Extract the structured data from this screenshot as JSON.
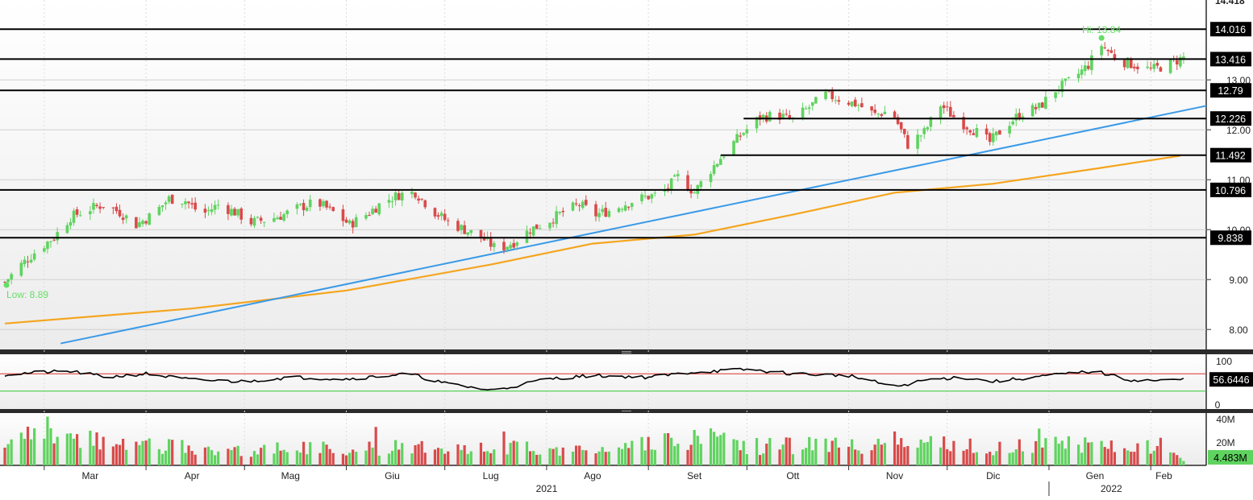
{
  "chart_data": [
    {
      "type": "candlestick",
      "panel": "price",
      "x_range": [
        "2021-02-17",
        "2022-02-12"
      ],
      "ylim": [
        7.6,
        14.6
      ],
      "y_ticks": [
        8.0,
        9.0,
        10.0,
        11.0,
        12.0,
        13.0
      ],
      "y_tick_labels": [
        "8.00",
        "9.00",
        "10.00",
        "11.00",
        "12.00",
        "13.00"
      ],
      "top_partial_label": "14.418",
      "horizontal_levels": [
        {
          "value": 14.016,
          "label": "14.016",
          "from": "2021-02-17"
        },
        {
          "value": 13.416,
          "label": "13.416",
          "from": "2021-02-17"
        },
        {
          "value": 12.79,
          "label": "12.79",
          "from": "2021-02-17"
        },
        {
          "value": 12.226,
          "label": "12.226",
          "from": "2021-09-30"
        },
        {
          "value": 11.492,
          "label": "11.492",
          "from": "2021-09-23"
        },
        {
          "value": 10.796,
          "label": "10.796",
          "from": "2021-02-17"
        },
        {
          "value": 9.838,
          "label": "9.838",
          "from": "2021-02-17"
        }
      ],
      "trendline": {
        "color": "#3a9ae8",
        "start": {
          "date": "2021-03-06",
          "value": 7.72
        },
        "end": {
          "date": "2022-02-12",
          "value": 12.48
        }
      },
      "moving_average": {
        "color": "#f5a51e",
        "points": [
          {
            "date": "2021-02-17",
            "value": 8.12
          },
          {
            "date": "2021-04-15",
            "value": 8.42
          },
          {
            "date": "2021-06-01",
            "value": 8.78
          },
          {
            "date": "2021-07-15",
            "value": 9.3
          },
          {
            "date": "2021-08-15",
            "value": 9.72
          },
          {
            "date": "2021-09-15",
            "value": 9.9
          },
          {
            "date": "2021-10-15",
            "value": 10.3
          },
          {
            "date": "2021-11-15",
            "value": 10.74
          },
          {
            "date": "2021-12-15",
            "value": 10.92
          },
          {
            "date": "2022-01-15",
            "value": 11.22
          },
          {
            "date": "2022-02-10",
            "value": 11.48
          }
        ]
      },
      "high": {
        "label": "Hi: 13.84",
        "date": "2022-01-17",
        "value": 13.84
      },
      "low": {
        "label": "Low: 8.89",
        "date": "2021-02-17",
        "value": 8.89
      },
      "closes": [
        {
          "date": "2021-02-17",
          "value": 8.95
        },
        {
          "date": "2021-02-22",
          "value": 9.3
        },
        {
          "date": "2021-02-27",
          "value": 9.6
        },
        {
          "date": "2021-03-04",
          "value": 9.85
        },
        {
          "date": "2021-03-09",
          "value": 10.25
        },
        {
          "date": "2021-03-14",
          "value": 10.4
        },
        {
          "date": "2021-03-19",
          "value": 10.5
        },
        {
          "date": "2021-03-24",
          "value": 10.35
        },
        {
          "date": "2021-03-29",
          "value": 10.1
        },
        {
          "date": "2021-04-03",
          "value": 10.3
        },
        {
          "date": "2021-04-08",
          "value": 10.62
        },
        {
          "date": "2021-04-13",
          "value": 10.58
        },
        {
          "date": "2021-04-18",
          "value": 10.3
        },
        {
          "date": "2021-04-23",
          "value": 10.5
        },
        {
          "date": "2021-04-28",
          "value": 10.35
        },
        {
          "date": "2021-05-03",
          "value": 10.15
        },
        {
          "date": "2021-05-08",
          "value": 10.2
        },
        {
          "date": "2021-05-13",
          "value": 10.3
        },
        {
          "date": "2021-05-18",
          "value": 10.45
        },
        {
          "date": "2021-05-23",
          "value": 10.55
        },
        {
          "date": "2021-05-28",
          "value": 10.35
        },
        {
          "date": "2021-06-02",
          "value": 10.1
        },
        {
          "date": "2021-06-07",
          "value": 10.3
        },
        {
          "date": "2021-06-12",
          "value": 10.55
        },
        {
          "date": "2021-06-17",
          "value": 10.7
        },
        {
          "date": "2021-06-22",
          "value": 10.75
        },
        {
          "date": "2021-06-27",
          "value": 10.4
        },
        {
          "date": "2021-07-02",
          "value": 10.15
        },
        {
          "date": "2021-07-07",
          "value": 10.0
        },
        {
          "date": "2021-07-12",
          "value": 9.85
        },
        {
          "date": "2021-07-17",
          "value": 9.6
        },
        {
          "date": "2021-07-22",
          "value": 9.75
        },
        {
          "date": "2021-07-27",
          "value": 10.0
        },
        {
          "date": "2021-08-01",
          "value": 10.15
        },
        {
          "date": "2021-08-06",
          "value": 10.35
        },
        {
          "date": "2021-08-11",
          "value": 10.5
        },
        {
          "date": "2021-08-16",
          "value": 10.3
        },
        {
          "date": "2021-08-21",
          "value": 10.4
        },
        {
          "date": "2021-08-26",
          "value": 10.55
        },
        {
          "date": "2021-08-31",
          "value": 10.65
        },
        {
          "date": "2021-09-05",
          "value": 10.72
        },
        {
          "date": "2021-09-10",
          "value": 11.05
        },
        {
          "date": "2021-09-15",
          "value": 10.75
        },
        {
          "date": "2021-09-20",
          "value": 11.2
        },
        {
          "date": "2021-09-25",
          "value": 11.6
        },
        {
          "date": "2021-09-30",
          "value": 11.95
        },
        {
          "date": "2021-10-05",
          "value": 12.25
        },
        {
          "date": "2021-10-10",
          "value": 12.3
        },
        {
          "date": "2021-10-15",
          "value": 12.2
        },
        {
          "date": "2021-10-20",
          "value": 12.45
        },
        {
          "date": "2021-10-25",
          "value": 12.7
        },
        {
          "date": "2021-10-30",
          "value": 12.6
        },
        {
          "date": "2021-11-04",
          "value": 12.5
        },
        {
          "date": "2021-11-09",
          "value": 12.3
        },
        {
          "date": "2021-11-14",
          "value": 12.4
        },
        {
          "date": "2021-11-19",
          "value": 11.7
        },
        {
          "date": "2021-11-24",
          "value": 11.95
        },
        {
          "date": "2021-11-29",
          "value": 12.5
        },
        {
          "date": "2021-12-04",
          "value": 12.2
        },
        {
          "date": "2021-12-09",
          "value": 12.0
        },
        {
          "date": "2021-12-14",
          "value": 11.75
        },
        {
          "date": "2021-12-19",
          "value": 12.1
        },
        {
          "date": "2021-12-24",
          "value": 12.35
        },
        {
          "date": "2021-12-29",
          "value": 12.45
        },
        {
          "date": "2022-01-03",
          "value": 12.8
        },
        {
          "date": "2022-01-08",
          "value": 13.0
        },
        {
          "date": "2022-01-13",
          "value": 13.3
        },
        {
          "date": "2022-01-17",
          "value": 13.7
        },
        {
          "date": "2022-01-22",
          "value": 13.4
        },
        {
          "date": "2022-01-27",
          "value": 13.3
        },
        {
          "date": "2022-02-01",
          "value": 13.2
        },
        {
          "date": "2022-02-06",
          "value": 13.3
        },
        {
          "date": "2022-02-11",
          "value": 13.45
        }
      ]
    },
    {
      "type": "line",
      "panel": "rsi",
      "ylim": [
        0,
        100
      ],
      "y_tick_labels": [
        "100",
        "0"
      ],
      "upper_line": {
        "value": 70,
        "color": "#e03030"
      },
      "lower_line": {
        "value": 30,
        "color": "#2ec82e"
      },
      "last_value_label": "56.6446",
      "values": [
        {
          "date": "2021-02-17",
          "value": 68
        },
        {
          "date": "2021-03-01",
          "value": 74
        },
        {
          "date": "2021-03-10",
          "value": 75
        },
        {
          "date": "2021-03-20",
          "value": 62
        },
        {
          "date": "2021-04-01",
          "value": 70
        },
        {
          "date": "2021-04-15",
          "value": 56
        },
        {
          "date": "2021-05-01",
          "value": 52
        },
        {
          "date": "2021-05-15",
          "value": 62
        },
        {
          "date": "2021-06-01",
          "value": 58
        },
        {
          "date": "2021-06-20",
          "value": 70
        },
        {
          "date": "2021-07-01",
          "value": 48
        },
        {
          "date": "2021-07-15",
          "value": 32
        },
        {
          "date": "2021-07-20",
          "value": 38
        },
        {
          "date": "2021-08-01",
          "value": 58
        },
        {
          "date": "2021-08-15",
          "value": 66
        },
        {
          "date": "2021-09-01",
          "value": 62
        },
        {
          "date": "2021-09-15",
          "value": 74
        },
        {
          "date": "2021-10-01",
          "value": 80
        },
        {
          "date": "2021-10-15",
          "value": 70
        },
        {
          "date": "2021-11-01",
          "value": 66
        },
        {
          "date": "2021-11-15",
          "value": 40
        },
        {
          "date": "2021-11-25",
          "value": 56
        },
        {
          "date": "2021-12-05",
          "value": 62
        },
        {
          "date": "2021-12-15",
          "value": 52
        },
        {
          "date": "2022-01-01",
          "value": 66
        },
        {
          "date": "2022-01-15",
          "value": 76
        },
        {
          "date": "2022-01-25",
          "value": 56
        },
        {
          "date": "2022-02-05",
          "value": 54
        },
        {
          "date": "2022-02-11",
          "value": 57
        }
      ]
    },
    {
      "type": "bar",
      "panel": "volume",
      "ylim": [
        0,
        45
      ],
      "y_unit": "M",
      "y_tick_labels": [
        "40M",
        "20M"
      ],
      "last_value_label": "4.483M",
      "values": [
        {
          "date": "2021-02-17",
          "value": 22
        },
        {
          "date": "2021-03-05",
          "value": 25
        },
        {
          "date": "2021-03-20",
          "value": 20
        },
        {
          "date": "2021-04-05",
          "value": 17
        },
        {
          "date": "2021-04-20",
          "value": 14
        },
        {
          "date": "2021-05-05",
          "value": 13
        },
        {
          "date": "2021-05-20",
          "value": 15
        },
        {
          "date": "2021-06-05",
          "value": 14
        },
        {
          "date": "2021-06-20",
          "value": 16
        },
        {
          "date": "2021-07-05",
          "value": 18
        },
        {
          "date": "2021-07-20",
          "value": 15
        },
        {
          "date": "2021-08-05",
          "value": 13
        },
        {
          "date": "2021-08-20",
          "value": 14
        },
        {
          "date": "2021-09-05",
          "value": 20
        },
        {
          "date": "2021-09-20",
          "value": 22
        },
        {
          "date": "2021-10-05",
          "value": 16
        },
        {
          "date": "2021-10-20",
          "value": 18
        },
        {
          "date": "2021-11-05",
          "value": 16
        },
        {
          "date": "2021-11-20",
          "value": 22
        },
        {
          "date": "2021-12-05",
          "value": 16
        },
        {
          "date": "2021-12-20",
          "value": 15
        },
        {
          "date": "2022-01-05",
          "value": 18
        },
        {
          "date": "2022-01-20",
          "value": 19
        },
        {
          "date": "2022-02-05",
          "value": 15
        },
        {
          "date": "2022-02-11",
          "value": 4.483
        }
      ]
    }
  ],
  "x_axis": {
    "months": [
      {
        "label": "Mar",
        "date": "2021-03-15"
      },
      {
        "label": "Apr",
        "date": "2021-04-15"
      },
      {
        "label": "Mag",
        "date": "2021-05-15"
      },
      {
        "label": "Giu",
        "date": "2021-06-15"
      },
      {
        "label": "Lug",
        "date": "2021-07-15"
      },
      {
        "label": "Ago",
        "date": "2021-08-15"
      },
      {
        "label": "Set",
        "date": "2021-09-15"
      },
      {
        "label": "Ott",
        "date": "2021-10-15"
      },
      {
        "label": "Nov",
        "date": "2021-11-15"
      },
      {
        "label": "Dic",
        "date": "2021-12-15"
      },
      {
        "label": "Gen",
        "date": "2022-01-15"
      },
      {
        "label": "Feb",
        "date": "2022-02-05"
      }
    ],
    "years": [
      {
        "label": "2021",
        "date": "2021-08-01"
      },
      {
        "label": "2022",
        "date": "2022-01-20"
      }
    ]
  },
  "colors": {
    "up": "#5fd35f",
    "down": "#d94a4a",
    "trendline": "#3a9ae8",
    "moving_average": "#f5a51e",
    "hi_low_marker": "#66dd66"
  }
}
